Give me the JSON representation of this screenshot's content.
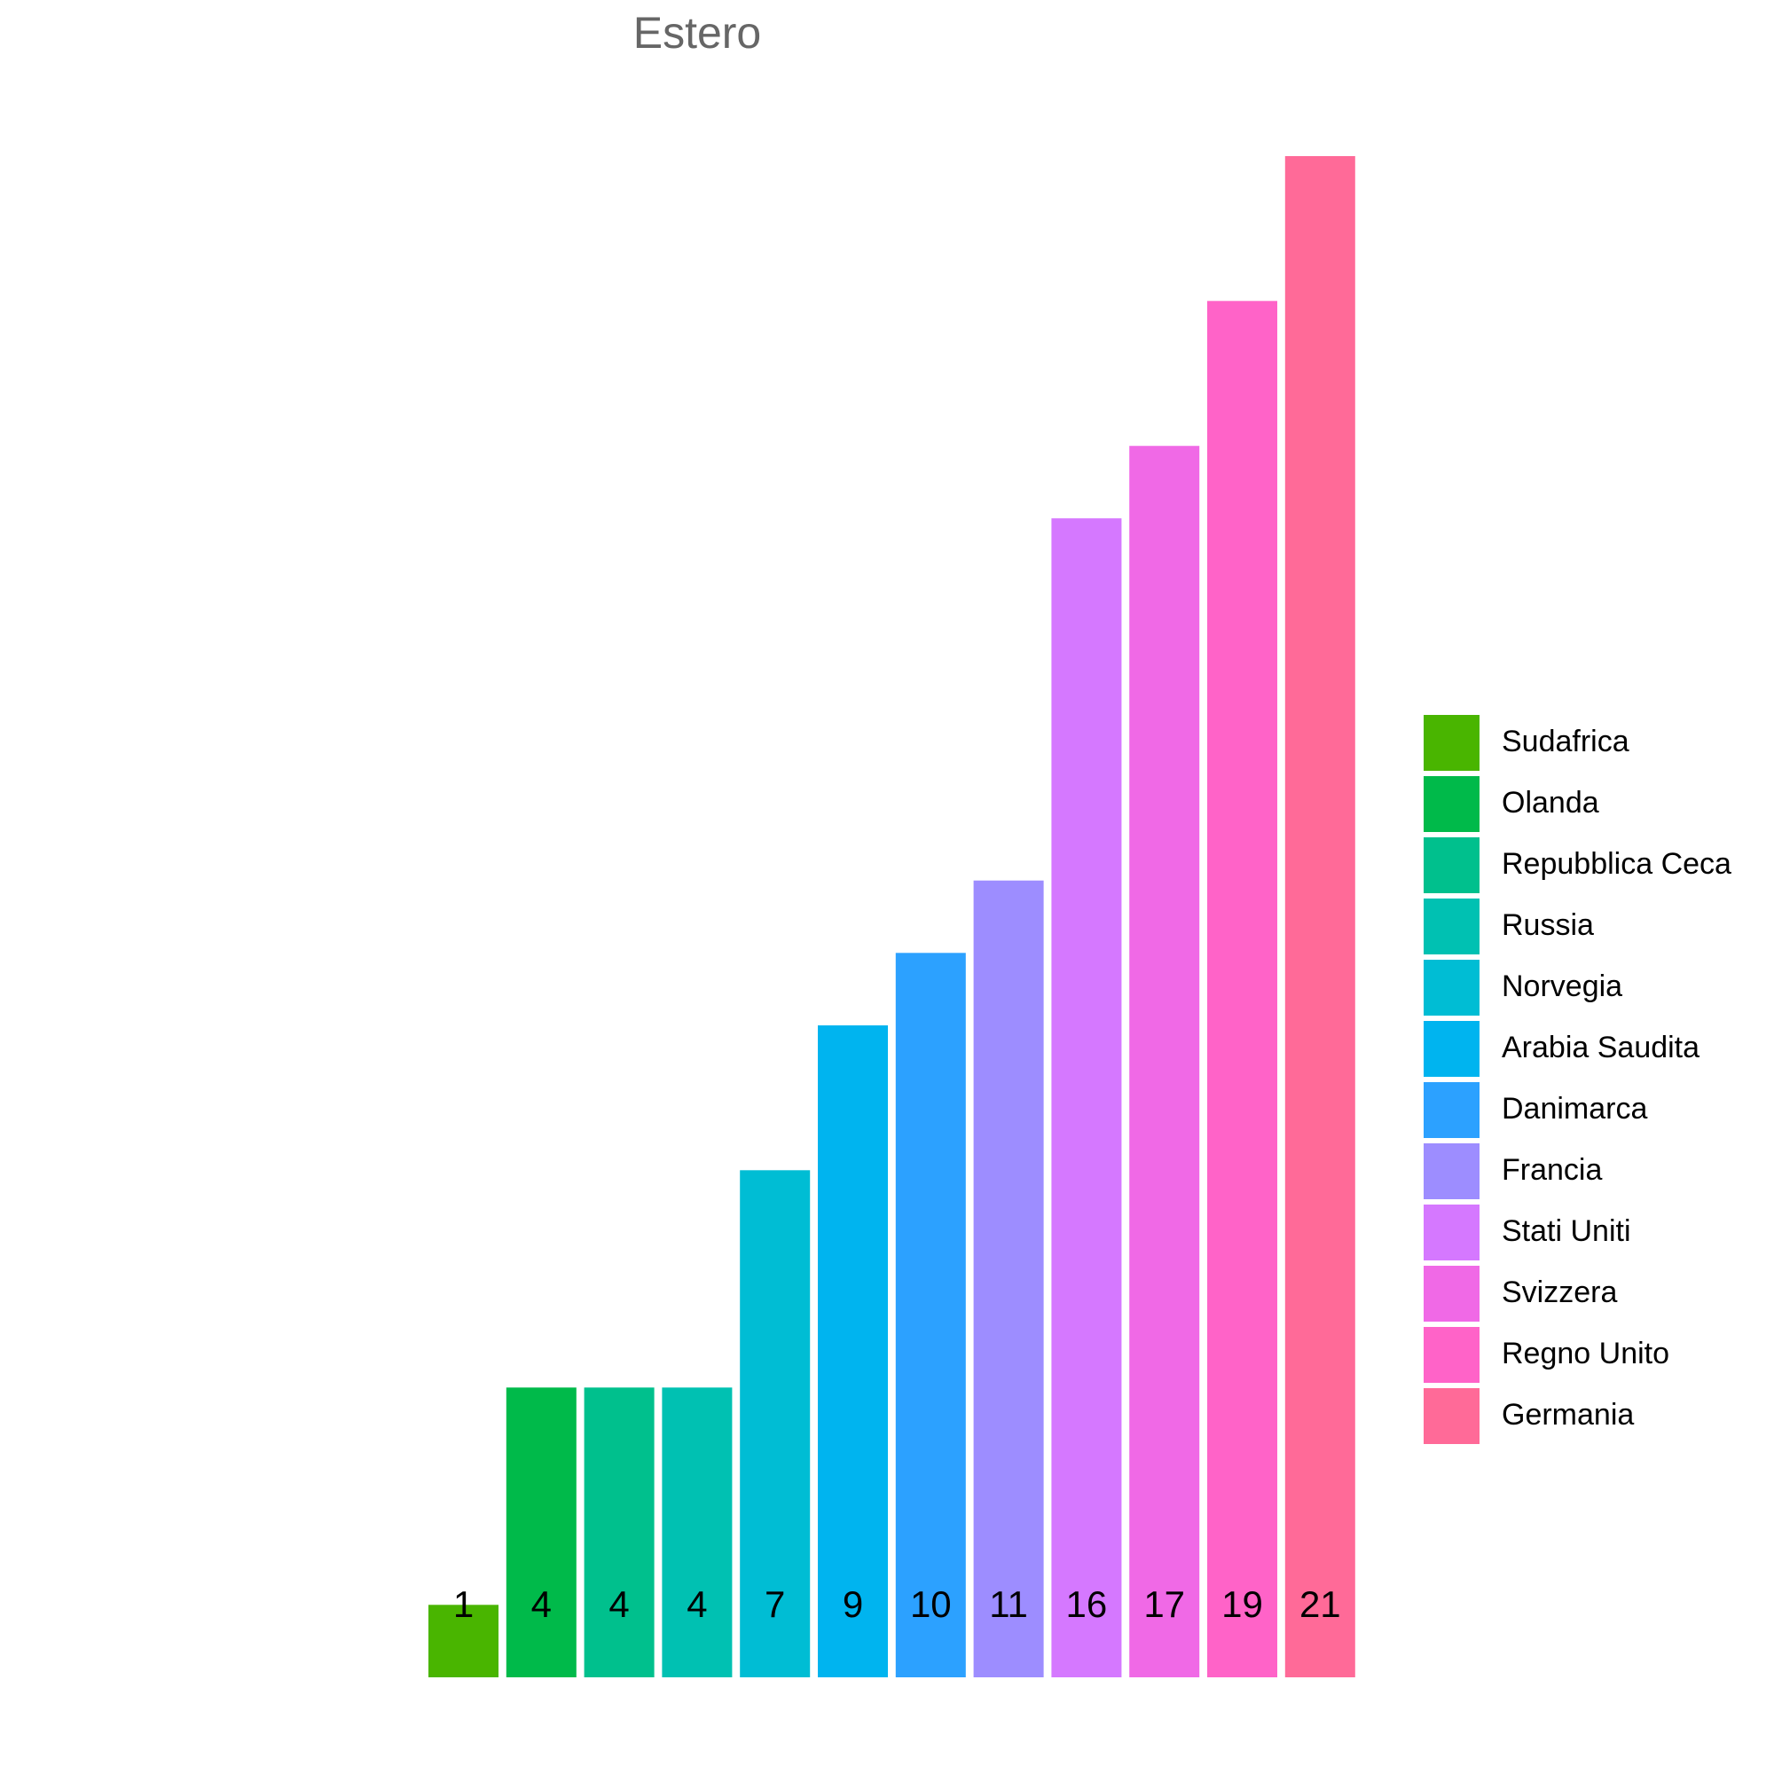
{
  "chart_data": {
    "type": "bar",
    "title": "Estero",
    "xlabel": "",
    "ylabel": "",
    "categories": [
      "Sudafrica",
      "Olanda",
      "Repubblica Ceca",
      "Russia",
      "Norvegia",
      "Arabia Saudita",
      "Danimarca",
      "Francia",
      "Stati Uniti",
      "Svizzera",
      "Regno Unito",
      "Germania"
    ],
    "values": [
      1,
      4,
      4,
      4,
      7,
      9,
      10,
      11,
      16,
      17,
      19,
      21
    ],
    "colors": [
      "#49B500",
      "#00BA4A",
      "#00C08D",
      "#00C1B2",
      "#00BDD4",
      "#00B4EF",
      "#2CA1FF",
      "#9D8DFF",
      "#D578FF",
      "#F069E6",
      "#FF63C8",
      "#FF6A98"
    ],
    "ylim": [
      0,
      21
    ],
    "grid": false,
    "axes_visible": false,
    "legend_position": "right"
  }
}
